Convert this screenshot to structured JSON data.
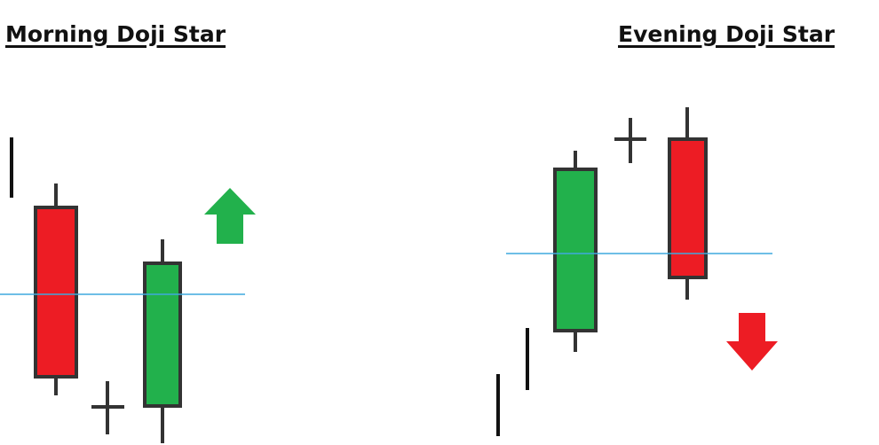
{
  "panels": {
    "left": {
      "title": "Morning Doji Star",
      "direction": "up"
    },
    "right": {
      "title": "Evening Doji Star",
      "direction": "down"
    }
  },
  "colors": {
    "bullish": "#22b14c",
    "bearish": "#ed1c24",
    "outline": "#333333",
    "reference_line": "#3fa9dd",
    "arrow_up": "#22b14c",
    "arrow_down": "#ed1c24"
  }
}
